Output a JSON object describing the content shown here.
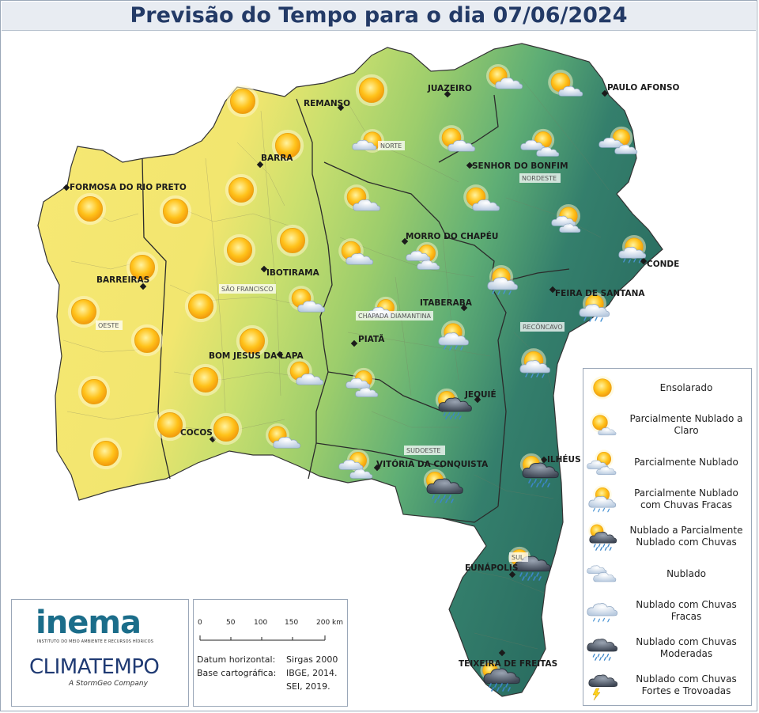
{
  "title": "Previsão do Tempo para o dia 07/06/2024",
  "cities": {
    "formosa": "FORMOSA DO RIO PRETO",
    "barreiras": "BARREIRAS",
    "barra": "BARRA",
    "remanso": "REMANSO",
    "juazeiro": "JUAZEIRO",
    "paulo_afonso": "PAULO AFONSO",
    "senhor_do_bonfim": "SENHOR DO BONFIM",
    "morro_do_chapeu": "MORRO DO CHAPÉU",
    "ibotirama": "IBOTIRAMA",
    "itaberaba": "ITABERABA",
    "feira_de_santana": "FEIRA DE SANTANA",
    "conde": "CONDE",
    "piata": "PIATÃ",
    "bom_jesus_da_lapa": "BOM JESUS DA LAPA",
    "jequie": "JEQUIÉ",
    "cocos": "COCOS",
    "vitoria_da_conquista": "VITÓRIA DA CONQUISTA",
    "ilheus": "ILHÉUS",
    "eunapolis": "EUNÁPOLIS",
    "teixeira_de_freitas": "TEIXEIRA DE FREITAS"
  },
  "regions": {
    "norte": "NORTE",
    "nordeste": "NORDESTE",
    "sao_francisco": "SÃO FRANCISCO",
    "oeste": "OESTE",
    "chapada": "CHAPADA DIAMANTINA",
    "reconcavo": "RECÔNCAVO",
    "sudoeste": "SUDOESTE",
    "sul": "SUL"
  },
  "legend": [
    {
      "icon": "sunny-icon",
      "label": "Ensolarado"
    },
    {
      "icon": "partly-cloudy-clear-icon",
      "label": "Parcialmente Nublado a Claro"
    },
    {
      "icon": "partly-cloudy-icon",
      "label": "Parcialmente Nublado"
    },
    {
      "icon": "partly-cloudy-light-rain-icon",
      "label": "Parcialmente Nublado com Chuvas Fracas"
    },
    {
      "icon": "cloudy-rain-icon",
      "label": "Nublado a Parcialmente Nublado com Chuvas"
    },
    {
      "icon": "cloudy-icon",
      "label": "Nublado"
    },
    {
      "icon": "cloudy-light-rain-icon",
      "label": "Nublado com Chuvas Fracas"
    },
    {
      "icon": "cloudy-moderate-rain-icon",
      "label": "Nublado com Chuvas Moderadas"
    },
    {
      "icon": "thunderstorm-icon",
      "label": "Nublado com Chuvas Fortes e Trovoadas"
    }
  ],
  "logos": {
    "inema": "inema",
    "inema_sub": "INSTITUTO DO MEIO AMBIENTE E RECURSOS HÍDRICOS",
    "climatempo": "CLIMATEMPO",
    "stormgeo": "A StormGeo Company"
  },
  "scale": {
    "ticks": [
      "0",
      "50",
      "100",
      "150",
      "200 km"
    ],
    "datum_key": "Datum horizontal:",
    "datum_val": "Sirgas 2000",
    "base_key": "Base cartográfica:",
    "base_val": "IBGE, 2014.",
    "base_val2": "SEI, 2019."
  },
  "colors": {
    "dry_yellow": "#f7e873",
    "mid_green": "#a8d36a",
    "humid_teal": "#2f7a6a",
    "title_text": "#233a66"
  }
}
